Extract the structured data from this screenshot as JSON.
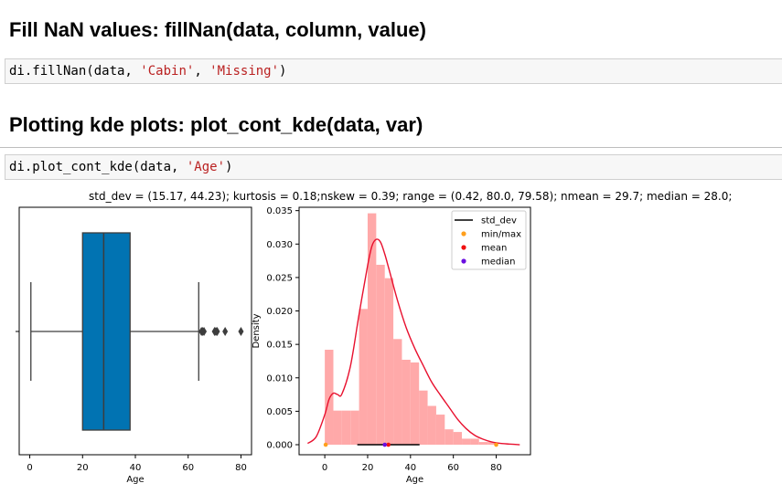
{
  "section1": {
    "heading": "Fill NaN values: fillNan(data, column, value)",
    "code": {
      "prefix": "di.fillNan(data, ",
      "arg1": "'Cabin'",
      "sep": ", ",
      "arg2": "'Missing'",
      "suffix": ")"
    }
  },
  "section2": {
    "heading": "Plotting kde plots: plot_cont_kde(data, var)",
    "code": {
      "prefix": "di.plot_cont_kde(data, ",
      "arg1": "'Age'",
      "suffix": ")"
    }
  },
  "output": {
    "stats_text": "std_dev = (15.17, 44.23); kurtosis = 0.18;nskew = 0.39; range = (0.42, 80.0, 79.58); nmean = 29.7; median =  28.0;"
  },
  "colors": {
    "box": "#0173b2",
    "hist": "#ffa9a9",
    "kde": "#e8102e",
    "minmax": "#ff9f1c",
    "mean": "#f01010",
    "median": "#6a0fe0",
    "std": "#000000",
    "string": "#ba2121"
  },
  "chart_data": [
    {
      "type": "box",
      "xlabel": "Age",
      "xlim": [
        -4,
        84
      ],
      "xticks": [
        0,
        20,
        40,
        60,
        80
      ],
      "box": {
        "whisker_low": 0.42,
        "q1": 20,
        "median": 28,
        "q3": 38,
        "whisker_high": 64
      },
      "outliers": [
        65,
        65.5,
        66,
        70,
        70.5,
        71,
        74,
        80
      ]
    },
    {
      "type": "histogram+kde",
      "xlabel": "Age",
      "ylabel": "Density",
      "xlim": [
        -12,
        96
      ],
      "ylim": [
        -0.0015,
        0.0355
      ],
      "xticks": [
        0,
        20,
        40,
        60,
        80
      ],
      "yticks": [
        0.0,
        0.005,
        0.01,
        0.015,
        0.02,
        0.025,
        0.03,
        0.035
      ],
      "ytick_labels": [
        "0.000",
        "0.005",
        "0.010",
        "0.015",
        "0.020",
        "0.025",
        "0.030",
        "0.035"
      ],
      "legend": {
        "position": "top-right",
        "entries": [
          "std_dev",
          "min/max",
          "mean",
          "median"
        ]
      },
      "histogram": {
        "bin_edges": [
          0,
          4,
          8,
          12,
          16,
          20,
          24,
          28,
          32,
          36,
          40,
          44,
          48,
          52,
          56,
          60,
          64,
          68,
          72,
          76,
          80
        ],
        "density": [
          0.0142,
          0.0051,
          0.0051,
          0.0051,
          0.0203,
          0.0346,
          0.0269,
          0.0249,
          0.0158,
          0.0127,
          0.0123,
          0.0081,
          0.0058,
          0.0045,
          0.0023,
          0.0019,
          0.0009,
          0.0009,
          0.0004,
          0.0004
        ]
      },
      "kde": {
        "x": [
          -8,
          -4,
          0,
          2,
          4,
          6,
          8,
          12,
          16,
          20,
          22,
          24,
          26,
          28,
          30,
          34,
          38,
          42,
          46,
          50,
          54,
          58,
          62,
          66,
          70,
          74,
          78,
          82,
          86,
          91
        ],
        "y": [
          0.0002,
          0.0012,
          0.0045,
          0.0068,
          0.0077,
          0.0075,
          0.0076,
          0.0118,
          0.0195,
          0.0268,
          0.0297,
          0.0307,
          0.0303,
          0.0285,
          0.0262,
          0.0215,
          0.0175,
          0.0144,
          0.0118,
          0.0093,
          0.0074,
          0.0056,
          0.0038,
          0.0024,
          0.0014,
          0.0008,
          0.0004,
          0.0002,
          0.0001,
          0.0
        ]
      },
      "markers": {
        "min": 0.42,
        "max": 80.0,
        "mean": 29.7,
        "median": 28.0,
        "std_dev_range": [
          15.17,
          44.23
        ]
      }
    }
  ]
}
